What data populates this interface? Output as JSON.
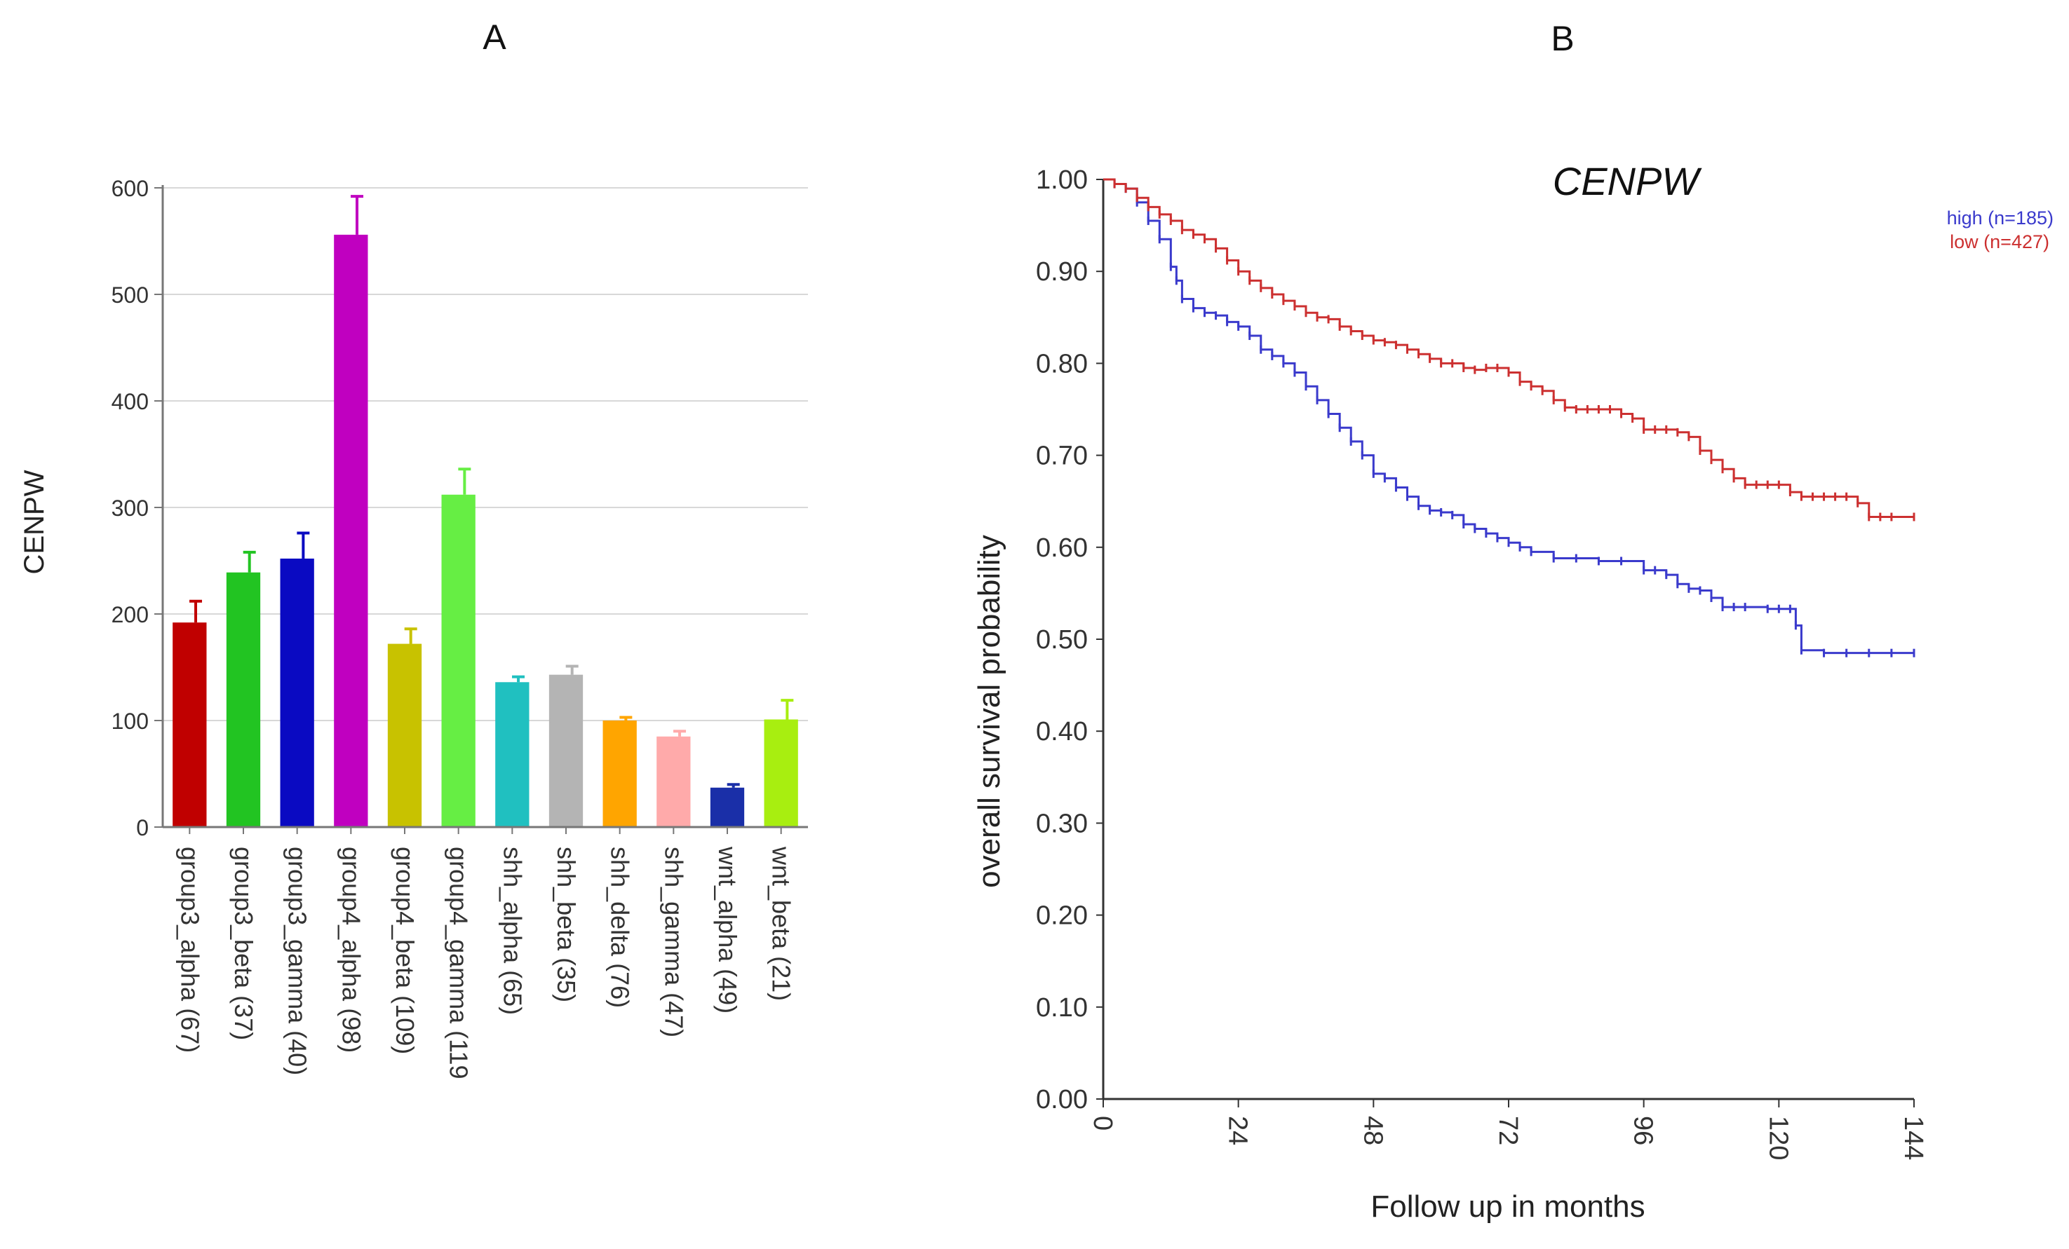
{
  "panels": {
    "a_label": "A",
    "b_label": "B"
  },
  "chart_data": [
    {
      "type": "bar",
      "title": "",
      "ylabel": "CENPW",
      "xlabel": "",
      "ylim": [
        0,
        600
      ],
      "yticks": [
        0,
        100,
        200,
        300,
        400,
        500,
        600
      ],
      "grid": true,
      "categories": [
        "group3_alpha (67)",
        "group3_beta (37)",
        "group3_gamma (40)",
        "group4_alpha (98)",
        "group4_beta (109)",
        "group4_gamma (119",
        "shh_alpha (65)",
        "shh_beta (35)",
        "shh_delta (76)",
        "shh_gamma (47)",
        "wnt_alpha (49)",
        "wnt_beta (21)"
      ],
      "values": [
        192,
        239,
        252,
        556,
        172,
        312,
        136,
        143,
        100,
        85,
        37,
        101
      ],
      "errors": [
        20,
        19,
        24,
        36,
        14,
        24,
        5,
        8,
        3,
        5,
        3,
        18
      ],
      "colors": [
        "#c00000",
        "#22c422",
        "#0a0ac2",
        "#c000c0",
        "#c8c200",
        "#66ee44",
        "#20c0c0",
        "#b4b4b4",
        "#ffa500",
        "#ffaaaa",
        "#1a2fa8",
        "#a8ee10"
      ]
    },
    {
      "type": "line",
      "title": "CENPW",
      "xlabel": "Follow up in months",
      "ylabel": "overall survival probability",
      "xlim": [
        0,
        144
      ],
      "ylim": [
        0,
        1
      ],
      "xticks": [
        0,
        24,
        48,
        72,
        96,
        120,
        144
      ],
      "yticks": [
        "0.00",
        "0.10",
        "0.20",
        "0.30",
        "0.40",
        "0.50",
        "0.60",
        "0.70",
        "0.80",
        "0.90",
        "1.00"
      ],
      "legend_position": "top-right",
      "series": [
        {
          "name": "high (n=185)",
          "color": "#3a3acc",
          "x": [
            0,
            2,
            4,
            6,
            8,
            10,
            12,
            13,
            14,
            16,
            18,
            20,
            22,
            24,
            26,
            28,
            30,
            32,
            34,
            36,
            38,
            40,
            42,
            44,
            46,
            48,
            50,
            52,
            54,
            56,
            58,
            60,
            62,
            64,
            66,
            68,
            70,
            72,
            74,
            76,
            80,
            84,
            88,
            92,
            96,
            98,
            100,
            102,
            104,
            106,
            108,
            110,
            112,
            114,
            118,
            120,
            122,
            123,
            124,
            128,
            132,
            136,
            140,
            144
          ],
          "y": [
            1.0,
            0.995,
            0.99,
            0.975,
            0.955,
            0.935,
            0.905,
            0.89,
            0.87,
            0.86,
            0.855,
            0.852,
            0.845,
            0.84,
            0.83,
            0.815,
            0.808,
            0.8,
            0.79,
            0.775,
            0.76,
            0.745,
            0.73,
            0.715,
            0.7,
            0.68,
            0.675,
            0.665,
            0.655,
            0.645,
            0.64,
            0.638,
            0.635,
            0.625,
            0.62,
            0.615,
            0.61,
            0.605,
            0.6,
            0.595,
            0.588,
            0.588,
            0.585,
            0.585,
            0.575,
            0.575,
            0.57,
            0.56,
            0.555,
            0.553,
            0.545,
            0.535,
            0.535,
            0.535,
            0.533,
            0.533,
            0.533,
            0.515,
            0.488,
            0.485,
            0.485,
            0.485,
            0.485,
            0.485
          ]
        },
        {
          "name": "low (n=427)",
          "color": "#cc3030",
          "x": [
            0,
            2,
            4,
            6,
            8,
            10,
            12,
            14,
            16,
            18,
            20,
            22,
            24,
            26,
            28,
            30,
            32,
            34,
            36,
            38,
            40,
            42,
            44,
            46,
            48,
            50,
            52,
            54,
            56,
            58,
            60,
            62,
            64,
            66,
            68,
            70,
            72,
            74,
            76,
            78,
            80,
            82,
            84,
            86,
            88,
            90,
            92,
            94,
            96,
            98,
            100,
            102,
            104,
            106,
            108,
            110,
            112,
            114,
            116,
            118,
            120,
            122,
            124,
            126,
            128,
            130,
            132,
            134,
            136,
            138,
            140,
            144
          ],
          "y": [
            1.0,
            0.995,
            0.99,
            0.98,
            0.97,
            0.962,
            0.955,
            0.945,
            0.94,
            0.935,
            0.925,
            0.912,
            0.9,
            0.89,
            0.882,
            0.875,
            0.868,
            0.862,
            0.855,
            0.85,
            0.848,
            0.84,
            0.835,
            0.83,
            0.825,
            0.823,
            0.82,
            0.815,
            0.81,
            0.805,
            0.8,
            0.8,
            0.795,
            0.793,
            0.795,
            0.795,
            0.79,
            0.78,
            0.775,
            0.77,
            0.76,
            0.752,
            0.75,
            0.75,
            0.75,
            0.75,
            0.745,
            0.74,
            0.728,
            0.728,
            0.728,
            0.725,
            0.72,
            0.705,
            0.695,
            0.685,
            0.675,
            0.668,
            0.668,
            0.668,
            0.668,
            0.66,
            0.655,
            0.655,
            0.655,
            0.655,
            0.655,
            0.648,
            0.633,
            0.633,
            0.633,
            0.633
          ]
        }
      ]
    }
  ]
}
